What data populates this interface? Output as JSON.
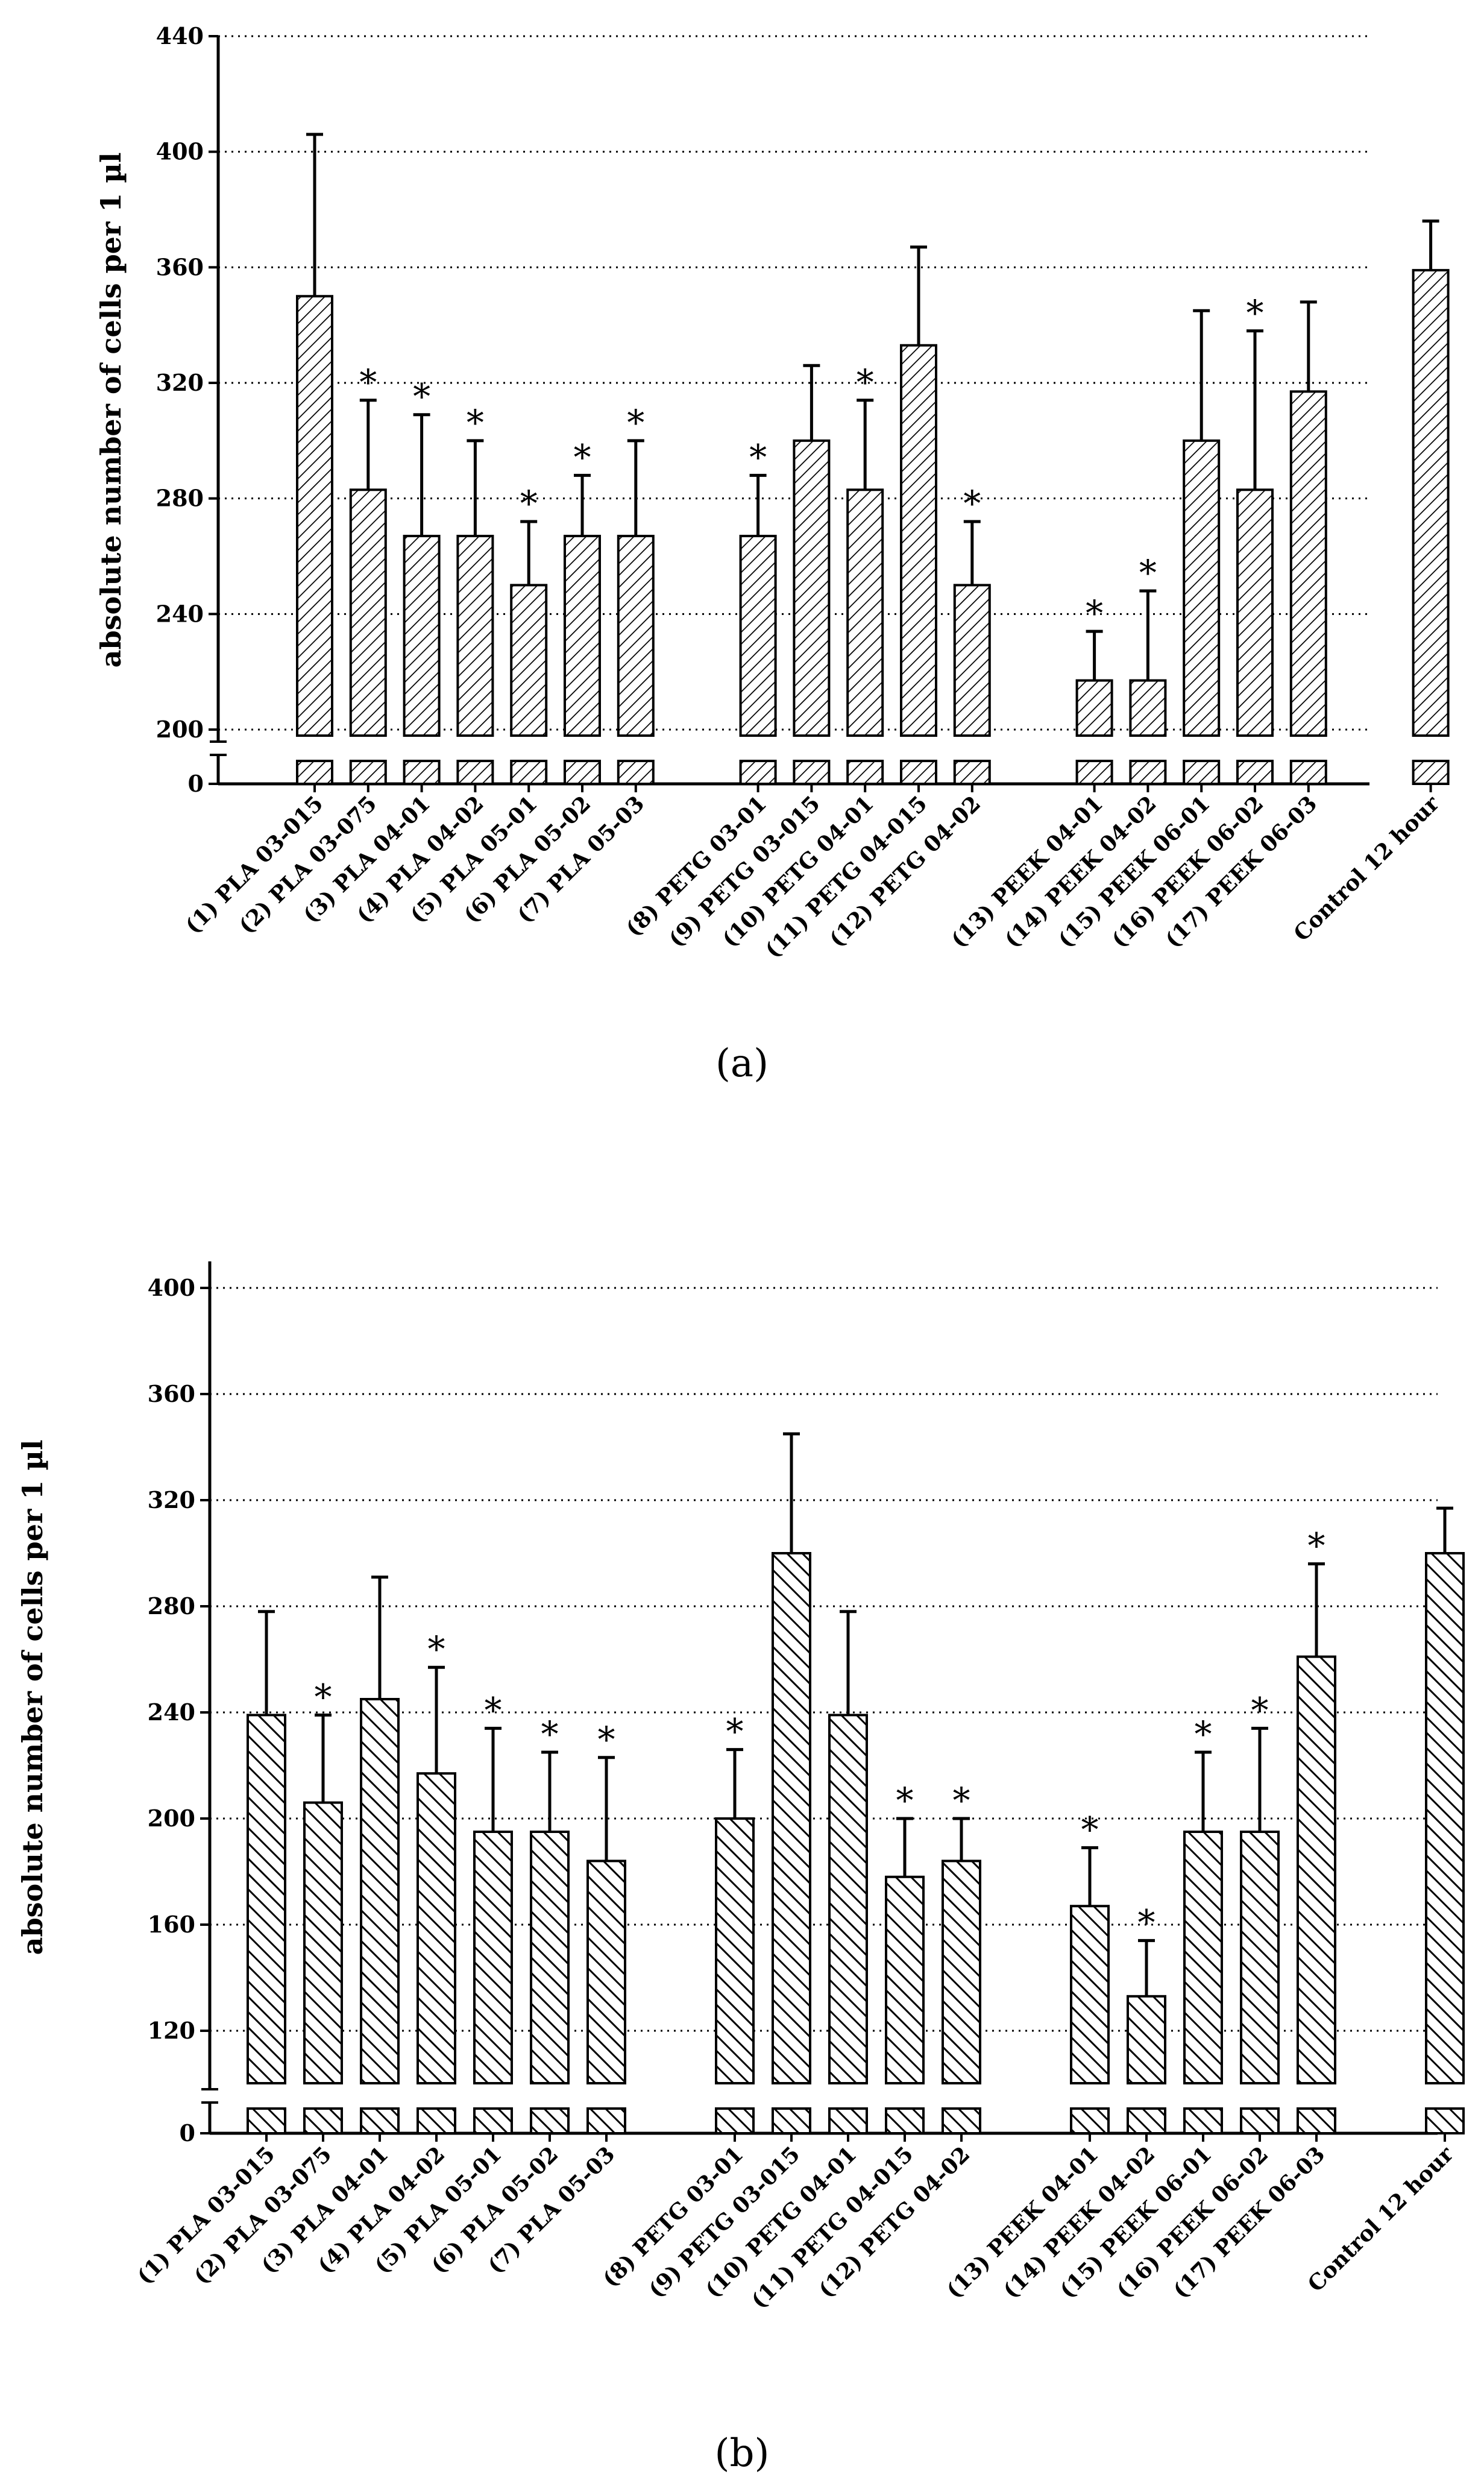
{
  "chart_data": [
    {
      "type": "bar",
      "panel_label": "(a)",
      "ylabel": "absolute number of cells per 1 µl",
      "ylim": [
        200,
        440
      ],
      "broken_axis_lower_tick": "0",
      "yticks": [
        "200",
        "240",
        "280",
        "320",
        "360",
        "400",
        "440"
      ],
      "grid": true,
      "hatch": "forward",
      "categories": [
        "(1) PLA 03-015",
        "(2) PLA 03-075",
        "(3) PLA 04-01",
        "(4) PLA 04-02",
        "(5) PLA 05-01",
        "(6) PLA 05-02",
        "(7) PLA 05-03",
        "(8) PETG 03-01",
        "(9) PETG 03-015",
        "(10) PETG 04-01",
        "(11) PETG 04-015",
        "(12) PETG 04-02",
        "(13) PEEK 04-01",
        "(14) PEEK 04-02",
        "(15) PEEK 06-01",
        "(16) PEEK 06-02",
        "(17) PEEK 06-03",
        "Control 12 hour"
      ],
      "groups": [
        0,
        0,
        0,
        0,
        0,
        0,
        0,
        1,
        1,
        1,
        1,
        1,
        2,
        2,
        2,
        2,
        2,
        3
      ],
      "values": [
        350,
        283,
        267,
        267,
        250,
        267,
        267,
        267,
        300,
        283,
        333,
        250,
        217,
        217,
        300,
        283,
        317,
        359
      ],
      "errors": [
        56,
        31,
        42,
        33,
        22,
        21,
        33,
        21,
        26,
        31,
        34,
        22,
        17,
        31,
        45,
        55,
        31,
        17
      ],
      "significant": [
        false,
        true,
        true,
        true,
        true,
        true,
        true,
        true,
        false,
        true,
        false,
        true,
        true,
        true,
        false,
        true,
        false,
        false
      ],
      "significance_marker": "*"
    },
    {
      "type": "bar",
      "panel_label": "(b)",
      "ylabel": "absolute number of cells per 1 µl",
      "ylim": [
        110,
        410
      ],
      "broken_axis_lower_tick": "0",
      "yticks": [
        "120",
        "160",
        "200",
        "240",
        "280",
        "320",
        "360",
        "400"
      ],
      "grid": true,
      "hatch": "backward",
      "categories": [
        "(1) PLA 03-015",
        "(2) PLA 03-075",
        "(3) PLA 04-01",
        "(4) PLA 04-02",
        "(5) PLA 05-01",
        "(6) PLA 05-02",
        "(7) PLA 05-03",
        "(8) PETG 03-01",
        "(9) PETG 03-015",
        "(10) PETG 04-01",
        "(11) PETG 04-015",
        "(12) PETG 04-02",
        "(13) PEEK 04-01",
        "(14) PEEK 04-02",
        "(15) PEEK 06-01",
        "(16) PEEK 06-02",
        "(17) PEEK 06-03",
        "Control 12 hour"
      ],
      "groups": [
        0,
        0,
        0,
        0,
        0,
        0,
        0,
        1,
        1,
        1,
        1,
        1,
        2,
        2,
        2,
        2,
        2,
        3
      ],
      "values": [
        239,
        206,
        245,
        217,
        195,
        195,
        184,
        200,
        300,
        239,
        178,
        184,
        167,
        133,
        195,
        195,
        261,
        300
      ],
      "errors": [
        39,
        33,
        46,
        40,
        39,
        30,
        39,
        26,
        45,
        39,
        22,
        16,
        22,
        21,
        30,
        39,
        35,
        17
      ],
      "significant": [
        false,
        true,
        false,
        true,
        true,
        true,
        true,
        true,
        false,
        false,
        true,
        true,
        true,
        true,
        true,
        true,
        true,
        false
      ],
      "significance_marker": "*"
    }
  ]
}
